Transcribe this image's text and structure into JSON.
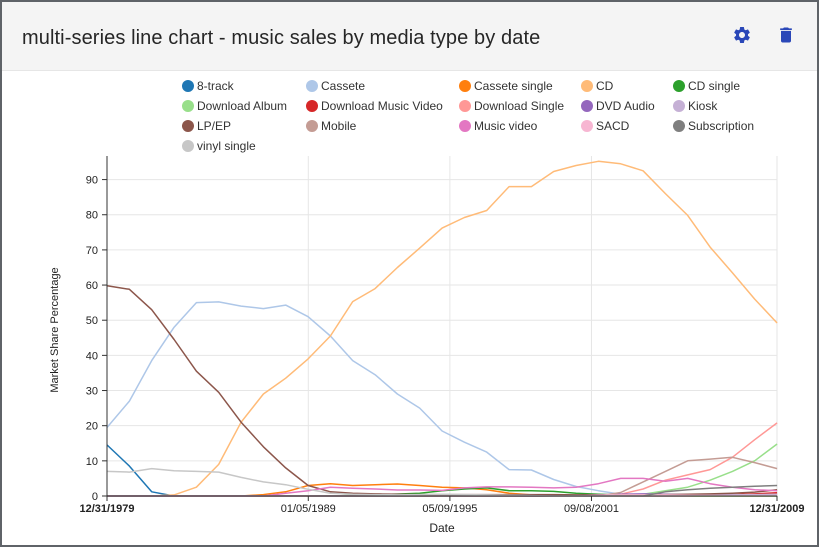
{
  "header": {
    "title": "multi-series line chart - music sales by media type by date",
    "settings_icon": "gear-icon",
    "delete_icon": "trash-icon",
    "accent": "#2a47b8"
  },
  "chart_data": {
    "type": "line",
    "xlabel": "Date",
    "ylabel": "Market Share Percentage",
    "x_ticks": [
      "12/31/1979",
      "01/05/1989",
      "05/09/1995",
      "09/08/2001",
      "12/31/2009"
    ],
    "x_tick_years": [
      1979.997,
      1989.01,
      1995.35,
      2001.69,
      2009.997
    ],
    "x_domain": [
      1979.997,
      2009.997
    ],
    "ylim": [
      0,
      95
    ],
    "y_ticks": [
      0,
      10,
      20,
      30,
      40,
      50,
      60,
      70,
      80,
      90
    ],
    "grid": true,
    "legend_position": "top",
    "series": [
      {
        "name": "8-track",
        "color": "#1f77b4",
        "x": [
          1980,
          1981,
          1982,
          1983,
          1984,
          1985,
          1986
        ],
        "values": [
          14.5,
          8.5,
          1.2,
          0,
          0,
          0,
          0
        ]
      },
      {
        "name": "Cassete",
        "color": "#aec7e8",
        "x": [
          1980,
          1981,
          1982,
          1983,
          1984,
          1985,
          1986,
          1987,
          1988,
          1989,
          1990,
          1991,
          1992,
          1993,
          1994,
          1995,
          1996,
          1997,
          1998,
          1999,
          2000,
          2001,
          2002,
          2003,
          2004,
          2005,
          2006,
          2007,
          2008,
          2009,
          2010
        ],
        "values": [
          19.5,
          27,
          38.5,
          48,
          55,
          55.2,
          54,
          53.3,
          54.3,
          51,
          45.5,
          38.5,
          34.5,
          29,
          25,
          18.5,
          15.3,
          12.5,
          7.5,
          7.4,
          4.7,
          2.7,
          1.5,
          0.5,
          0,
          0,
          0,
          0,
          0,
          0,
          0
        ]
      },
      {
        "name": "Cassete single",
        "color": "#ff7f0e",
        "x": [
          1980,
          1982,
          1984,
          1986,
          1987,
          1988,
          1989,
          1990,
          1991,
          1992,
          1993,
          1994,
          1995,
          1996,
          1997,
          1998,
          1999,
          2000,
          2001,
          2002,
          2004,
          2006,
          2008,
          2010
        ],
        "values": [
          0,
          0,
          0,
          0,
          0.4,
          1.2,
          3.0,
          3.5,
          3.0,
          3.2,
          3.4,
          3.0,
          2.5,
          2.3,
          1.8,
          0.8,
          0.3,
          0,
          0,
          0,
          0,
          0,
          0,
          0
        ]
      },
      {
        "name": "CD",
        "color": "#ffbb78",
        "x": [
          1980,
          1981,
          1982,
          1983,
          1984,
          1985,
          1986,
          1987,
          1988,
          1989,
          1990,
          1991,
          1992,
          1993,
          1994,
          1995,
          1996,
          1997,
          1998,
          1999,
          2000,
          2001,
          2002,
          2003,
          2004,
          2005,
          2006,
          2007,
          2008,
          2009,
          2010
        ],
        "values": [
          0,
          0,
          0,
          0.3,
          2.5,
          9,
          21,
          29,
          33.5,
          39,
          45.5,
          55.3,
          59,
          65,
          70.5,
          76.2,
          79.2,
          81.2,
          88,
          88,
          92.3,
          94,
          95.2,
          94.5,
          92.5,
          86,
          79.8,
          70.8,
          63.5,
          56,
          49.2
        ]
      },
      {
        "name": "CD single",
        "color": "#2ca02c",
        "x": [
          1980,
          1984,
          1988,
          1990,
          1992,
          1994,
          1995,
          1996,
          1997,
          1998,
          1999,
          2000,
          2001,
          2002,
          2003,
          2004,
          2006,
          2008,
          2010
        ],
        "values": [
          0,
          0,
          0,
          0,
          0.3,
          0.8,
          1.5,
          2.0,
          2.3,
          1.5,
          1.5,
          1.3,
          0.8,
          0.5,
          0.3,
          0,
          0,
          0,
          0
        ]
      },
      {
        "name": "Download Album",
        "color": "#98df8a",
        "x": [
          1980,
          2000,
          2003,
          2004,
          2005,
          2006,
          2007,
          2008,
          2009,
          2010
        ],
        "values": [
          0,
          0,
          0,
          0.5,
          1.5,
          2.5,
          4.5,
          7,
          10,
          14.8
        ]
      },
      {
        "name": "Download Music Video",
        "color": "#d62728",
        "x": [
          1980,
          2004,
          2006,
          2007,
          2008,
          2009,
          2010
        ],
        "values": [
          0,
          0,
          0,
          0.2,
          0.4,
          0.6,
          0.9
        ]
      },
      {
        "name": "Download Single",
        "color": "#ff9896",
        "x": [
          1980,
          2002,
          2003,
          2004,
          2005,
          2006,
          2007,
          2008,
          2009,
          2010
        ],
        "values": [
          0,
          0,
          0.5,
          2,
          4.5,
          6,
          7.5,
          11,
          16,
          20.8
        ]
      },
      {
        "name": "DVD Audio",
        "color": "#9467bd",
        "x": [
          1980,
          1999,
          2001,
          2002,
          2003,
          2004,
          2005,
          2006,
          2007,
          2008,
          2009,
          2010
        ],
        "values": [
          0,
          0,
          0.2,
          0.3,
          0.5,
          0.6,
          0.5,
          0.4,
          0.4,
          0.3,
          0.2,
          0.2
        ]
      },
      {
        "name": "Kiosk",
        "color": "#c5b0d5",
        "x": [
          1980,
          2005,
          2006,
          2007,
          2008,
          2009,
          2010
        ],
        "values": [
          0,
          0,
          0,
          0.2,
          0.3,
          0.4,
          0.5
        ]
      },
      {
        "name": "LP/EP",
        "color": "#8c564b",
        "x": [
          1980,
          1981,
          1982,
          1983,
          1984,
          1985,
          1986,
          1987,
          1988,
          1989,
          1990,
          1991,
          1992,
          1993,
          1994,
          1995,
          1996,
          1997,
          1998,
          1999,
          2000,
          2001,
          2002,
          2003,
          2004,
          2005,
          2006,
          2007,
          2008,
          2009,
          2010
        ],
        "values": [
          59.8,
          58.8,
          53,
          44.5,
          35.5,
          29.5,
          21,
          14,
          8,
          3,
          1.2,
          0.8,
          0.6,
          0.5,
          0.4,
          0.4,
          0.4,
          0.4,
          0.4,
          0.4,
          0.4,
          0.3,
          0.3,
          0.3,
          0.3,
          0.4,
          0.5,
          0.6,
          0.8,
          1.1,
          1.8
        ]
      },
      {
        "name": "Mobile",
        "color": "#c49c94",
        "x": [
          1980,
          2002,
          2003,
          2004,
          2005,
          2006,
          2007,
          2008,
          2009,
          2010
        ],
        "values": [
          0,
          0,
          1,
          4,
          7,
          10,
          10.5,
          11,
          9.5,
          7.8
        ]
      },
      {
        "name": "Music video",
        "color": "#e377c2",
        "x": [
          1980,
          1987,
          1988,
          1989,
          1990,
          1991,
          1992,
          1993,
          1994,
          1995,
          1996,
          1997,
          1998,
          1999,
          2000,
          2001,
          2002,
          2003,
          2004,
          2005,
          2006,
          2007,
          2008,
          2009,
          2010
        ],
        "values": [
          0,
          0,
          0.8,
          1.5,
          2.5,
          2.2,
          2.0,
          1.7,
          1.7,
          1.6,
          2.3,
          2.6,
          2.6,
          2.5,
          2.3,
          2.5,
          3.5,
          5,
          5,
          4.2,
          5,
          3.5,
          2.5,
          1.8,
          1.5
        ]
      },
      {
        "name": "SACD",
        "color": "#f7b6d2",
        "x": [
          1980,
          2001,
          2002,
          2003,
          2004,
          2005,
          2006,
          2008,
          2010
        ],
        "values": [
          0,
          0,
          0.2,
          0.3,
          0.3,
          0.3,
          0.2,
          0.1,
          0.1
        ]
      },
      {
        "name": "Subscription",
        "color": "#7f7f7f",
        "x": [
          1980,
          2004,
          2005,
          2006,
          2007,
          2008,
          2009,
          2010
        ],
        "values": [
          0,
          0,
          1.2,
          1.8,
          2.2,
          2.5,
          2.8,
          3.0
        ]
      },
      {
        "name": "vinyl single",
        "color": "#c7c7c7",
        "x": [
          1980,
          1981,
          1982,
          1983,
          1984,
          1985,
          1986,
          1987,
          1988,
          1989,
          1990,
          1991,
          1992,
          1993,
          1994,
          1995,
          1996,
          1997,
          1998,
          1999,
          2000,
          2002,
          2004,
          2006,
          2008,
          2010
        ],
        "values": [
          7,
          6.8,
          7.8,
          7.2,
          7,
          6.8,
          5.3,
          4,
          3.2,
          1.9,
          0.8,
          0.5,
          0.4,
          0.3,
          0.4,
          0.5,
          0.4,
          0.3,
          0.2,
          0.1,
          0,
          0,
          0,
          0,
          0,
          0
        ]
      }
    ]
  }
}
